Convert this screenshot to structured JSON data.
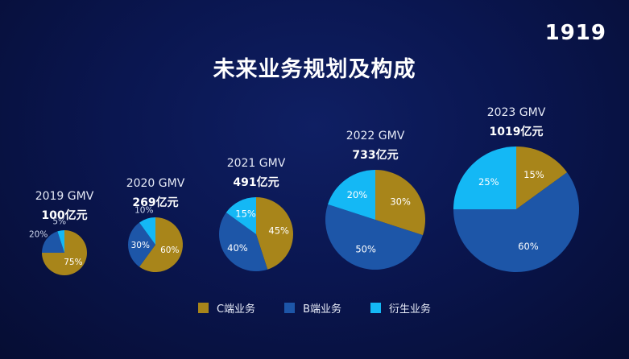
{
  "brand": {
    "logo_text": "1919"
  },
  "slide": {
    "title": "未来业务规划及构成"
  },
  "colors": {
    "c": "#a8851a",
    "b": "#1d56a8",
    "d": "#14b8f5"
  },
  "chart_data": {
    "type": "pie",
    "title": "未来业务规划及构成",
    "series_names": [
      "C端业务",
      "B端业务",
      "衍生业务"
    ],
    "legend_position": "bottom",
    "pies": [
      {
        "year_label": "2019 GMV",
        "gmv_label": "100亿元",
        "values": [
          75,
          20,
          5
        ],
        "labels": [
          "75%",
          "20%",
          "5%"
        ]
      },
      {
        "year_label": "2020 GMV",
        "gmv_label": "269亿元",
        "values": [
          60,
          30,
          10
        ],
        "labels": [
          "60%",
          "30%",
          "10%"
        ]
      },
      {
        "year_label": "2021 GMV",
        "gmv_label": "491亿元",
        "values": [
          45,
          40,
          15
        ],
        "labels": [
          "45%",
          "40%",
          "15%"
        ]
      },
      {
        "year_label": "2022 GMV",
        "gmv_label": "733亿元",
        "values": [
          30,
          50,
          20
        ],
        "labels": [
          "30%",
          "50%",
          "20%"
        ]
      },
      {
        "year_label": "2023 GMV",
        "gmv_label": "1019亿元",
        "values": [
          15,
          60,
          25
        ],
        "labels": [
          "15%",
          "60%",
          "25%"
        ]
      }
    ]
  },
  "legend": {
    "items": [
      {
        "label": "C端业务",
        "color": "#a8851a"
      },
      {
        "label": "B端业务",
        "color": "#1d56a8"
      },
      {
        "label": "衍生业务",
        "color": "#14b8f5"
      }
    ]
  }
}
